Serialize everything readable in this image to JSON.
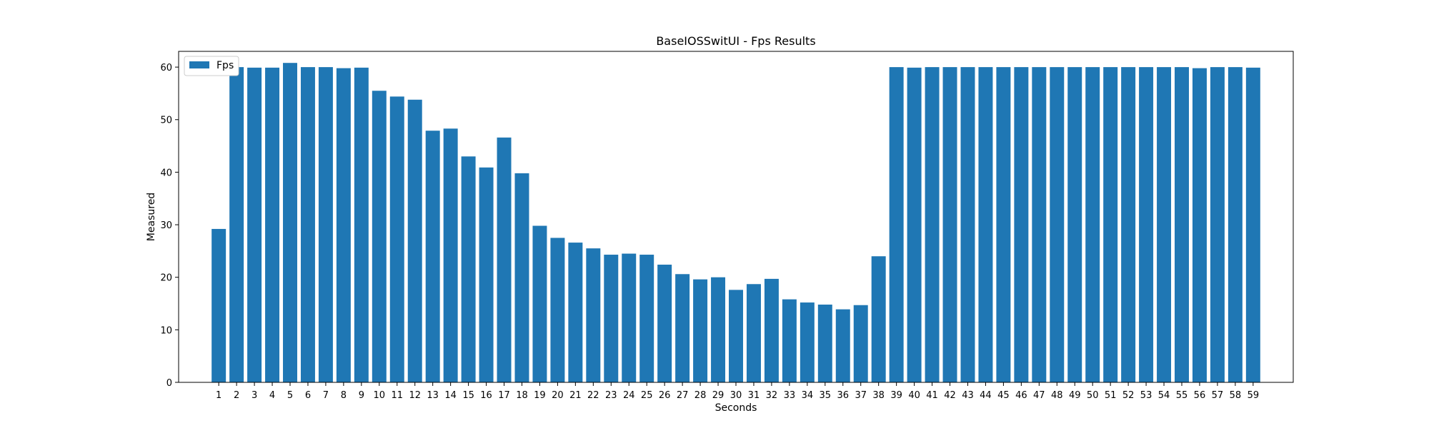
{
  "chart_data": {
    "type": "bar",
    "title": "BaseIOSSwitUI - Fps Results",
    "xlabel": "Seconds",
    "ylabel": "Measured",
    "categories": [
      "1",
      "2",
      "3",
      "4",
      "5",
      "6",
      "7",
      "8",
      "9",
      "10",
      "11",
      "12",
      "13",
      "14",
      "15",
      "16",
      "17",
      "18",
      "19",
      "20",
      "21",
      "22",
      "23",
      "24",
      "25",
      "26",
      "27",
      "28",
      "29",
      "30",
      "31",
      "32",
      "33",
      "34",
      "35",
      "36",
      "37",
      "38",
      "39",
      "40",
      "41",
      "42",
      "43",
      "44",
      "45",
      "46",
      "47",
      "48",
      "49",
      "50",
      "51",
      "52",
      "53",
      "54",
      "55",
      "56",
      "57",
      "58",
      "59"
    ],
    "series": [
      {
        "name": "Fps",
        "color": "#1f77b4",
        "values": [
          29.2,
          60.0,
          59.9,
          59.9,
          60.8,
          60.0,
          60.0,
          59.8,
          59.9,
          55.5,
          54.4,
          53.8,
          47.9,
          48.3,
          43.0,
          40.9,
          46.6,
          39.8,
          29.8,
          27.5,
          26.6,
          25.5,
          24.3,
          24.5,
          24.3,
          22.4,
          20.6,
          19.6,
          20.0,
          17.6,
          18.7,
          19.7,
          15.8,
          15.2,
          14.8,
          13.9,
          14.7,
          24.0,
          60.0,
          59.9,
          60.0,
          60.0,
          60.0,
          60.0,
          60.0,
          60.0,
          60.0,
          60.0,
          60.0,
          60.0,
          60.0,
          60.0,
          60.0,
          60.0,
          60.0,
          59.8,
          60.0,
          60.0,
          59.9
        ]
      }
    ],
    "ylim": [
      0,
      63
    ],
    "yticks": [
      0,
      10,
      20,
      30,
      40,
      50,
      60
    ],
    "legend": "upper left",
    "grid": false
  }
}
